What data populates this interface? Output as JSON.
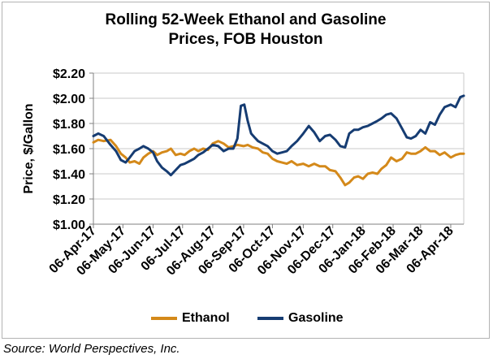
{
  "title_line1": "Rolling 52-Week Ethanol and Gasoline",
  "title_line2": "Prices, FOB Houston",
  "source": "Source: World Perspectives, Inc.",
  "colors": {
    "ethanol": "#d4891a",
    "gasoline": "#163c72",
    "gridline": "#c8c8c8",
    "axis": "#808080"
  },
  "chart_data": {
    "type": "line",
    "title": "Rolling 52-Week Ethanol and Gasoline Prices, FOB Houston",
    "xlabel": "",
    "ylabel": "Price, $/Gallon",
    "ylim": [
      1.0,
      2.2
    ],
    "yticks": [
      1.0,
      1.2,
      1.4,
      1.6,
      1.8,
      2.0,
      2.2
    ],
    "ytick_labels": [
      "$1.00",
      "$1.20",
      "$1.40",
      "$1.60",
      "$1.80",
      "$2.00",
      "$2.20"
    ],
    "x_range": [
      0,
      54
    ],
    "x_unit": "weeks since 06-Apr-17",
    "xticks": [
      {
        "label": "06-Apr-17",
        "x": 0
      },
      {
        "label": "06-May-17",
        "x": 4.3
      },
      {
        "label": "06-Jun-17",
        "x": 8.7
      },
      {
        "label": "06-Jul-17",
        "x": 13.0
      },
      {
        "label": "06-Aug-17",
        "x": 17.4
      },
      {
        "label": "06-Sep-17",
        "x": 21.9
      },
      {
        "label": "06-Oct-17",
        "x": 26.1
      },
      {
        "label": "06-Nov-17",
        "x": 30.6
      },
      {
        "label": "06-Dec-17",
        "x": 34.9
      },
      {
        "label": "06-Jan-18",
        "x": 39.3
      },
      {
        "label": "06-Feb-18",
        "x": 43.7
      },
      {
        "label": "06-Mar-18",
        "x": 47.7
      },
      {
        "label": "06-Apr-18",
        "x": 52.1
      }
    ],
    "grid": true,
    "legend_position": "bottom",
    "series": [
      {
        "name": "Ethanol",
        "color": "#d4891a",
        "x": [
          0,
          0.7,
          1.5,
          2.5,
          3.3,
          4.0,
          4.7,
          5.3,
          6.0,
          6.7,
          7.3,
          8.0,
          8.7,
          9.3,
          10.0,
          10.7,
          11.3,
          12.0,
          12.7,
          13.3,
          14.0,
          14.7,
          15.3,
          16.0,
          16.7,
          17.4,
          18.2,
          19.0,
          19.7,
          20.4,
          21.0,
          21.9,
          22.5,
          23.2,
          24.0,
          24.7,
          25.4,
          26.1,
          26.8,
          27.5,
          28.2,
          28.9,
          29.7,
          30.6,
          31.4,
          32.2,
          33.0,
          33.8,
          34.5,
          35.3,
          36.0,
          36.7,
          37.3,
          38.0,
          38.6,
          39.3,
          40.0,
          40.7,
          41.4,
          42.0,
          42.7,
          43.4,
          44.2,
          45.0,
          45.7,
          46.3,
          47.0,
          47.7,
          48.4,
          49.1,
          49.8,
          50.5,
          51.2,
          52.1,
          52.8,
          53.5,
          54.0
        ],
        "values": [
          1.65,
          1.67,
          1.66,
          1.67,
          1.62,
          1.56,
          1.53,
          1.49,
          1.5,
          1.48,
          1.53,
          1.56,
          1.58,
          1.55,
          1.57,
          1.58,
          1.6,
          1.55,
          1.56,
          1.55,
          1.58,
          1.6,
          1.58,
          1.6,
          1.59,
          1.64,
          1.66,
          1.64,
          1.61,
          1.62,
          1.63,
          1.62,
          1.63,
          1.61,
          1.6,
          1.57,
          1.56,
          1.52,
          1.5,
          1.49,
          1.48,
          1.5,
          1.47,
          1.48,
          1.46,
          1.48,
          1.46,
          1.46,
          1.43,
          1.42,
          1.37,
          1.31,
          1.33,
          1.37,
          1.38,
          1.36,
          1.4,
          1.41,
          1.4,
          1.44,
          1.47,
          1.53,
          1.5,
          1.52,
          1.57,
          1.56,
          1.56,
          1.58,
          1.61,
          1.58,
          1.58,
          1.55,
          1.57,
          1.53,
          1.55,
          1.56,
          1.56
        ]
      },
      {
        "name": "Gasoline",
        "color": "#163c72",
        "x": [
          0,
          0.7,
          1.5,
          2.5,
          3.3,
          4.0,
          4.7,
          5.3,
          6.0,
          6.7,
          7.3,
          8.0,
          8.7,
          9.3,
          10.0,
          10.7,
          11.3,
          12.0,
          12.7,
          13.3,
          14.0,
          14.7,
          15.3,
          16.0,
          16.7,
          17.4,
          18.2,
          19.0,
          19.7,
          20.4,
          21.0,
          21.5,
          22.0,
          22.5,
          23.0,
          23.5,
          24.0,
          24.7,
          25.4,
          26.1,
          26.8,
          27.5,
          28.2,
          28.9,
          29.7,
          30.6,
          31.4,
          32.2,
          33.0,
          33.8,
          34.5,
          35.3,
          36.0,
          36.7,
          37.3,
          38.0,
          38.6,
          39.3,
          40.0,
          40.7,
          41.4,
          42.0,
          42.7,
          43.4,
          44.2,
          45.0,
          45.7,
          46.3,
          47.0,
          47.7,
          48.4,
          49.1,
          49.8,
          50.5,
          51.2,
          52.1,
          52.8,
          53.5,
          54.0
        ],
        "values": [
          1.7,
          1.72,
          1.7,
          1.63,
          1.58,
          1.51,
          1.49,
          1.53,
          1.58,
          1.6,
          1.62,
          1.6,
          1.57,
          1.5,
          1.45,
          1.42,
          1.39,
          1.43,
          1.47,
          1.48,
          1.5,
          1.52,
          1.55,
          1.57,
          1.6,
          1.63,
          1.62,
          1.58,
          1.6,
          1.6,
          1.68,
          1.94,
          1.95,
          1.82,
          1.72,
          1.69,
          1.66,
          1.64,
          1.62,
          1.58,
          1.56,
          1.57,
          1.58,
          1.62,
          1.66,
          1.72,
          1.78,
          1.73,
          1.66,
          1.7,
          1.71,
          1.67,
          1.62,
          1.61,
          1.72,
          1.75,
          1.75,
          1.77,
          1.78,
          1.8,
          1.82,
          1.84,
          1.87,
          1.88,
          1.84,
          1.76,
          1.69,
          1.68,
          1.7,
          1.75,
          1.72,
          1.81,
          1.79,
          1.87,
          1.93,
          1.95,
          1.93,
          2.01,
          2.02
        ]
      }
    ]
  }
}
